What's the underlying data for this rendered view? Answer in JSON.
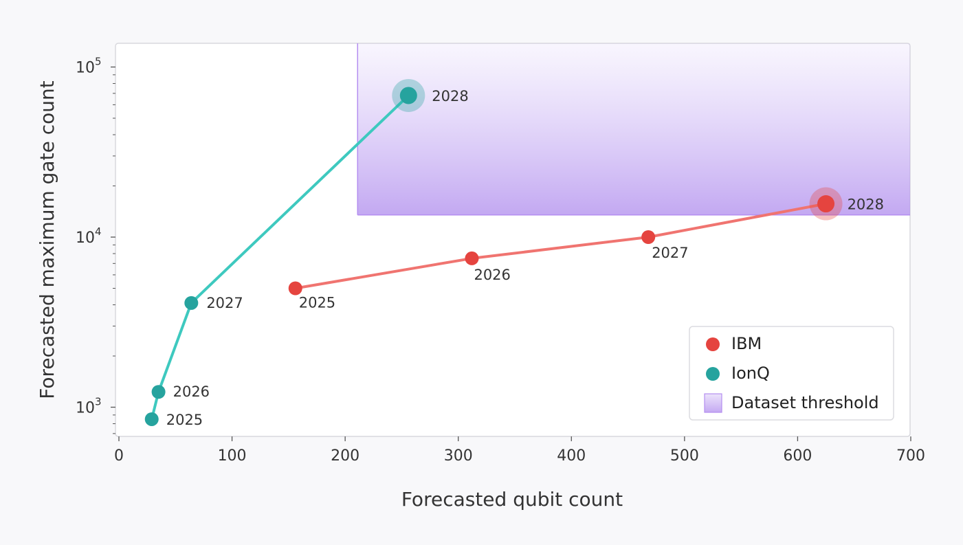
{
  "chart_data": {
    "type": "scatter",
    "title": "",
    "xlabel": "Forecasted qubit count",
    "ylabel": "Forecasted maximum gate count",
    "xlim": [
      0,
      700
    ],
    "ylim": [
      630,
      130000
    ],
    "yscale": "log",
    "x_ticks": [
      0,
      100,
      200,
      300,
      400,
      500,
      600,
      700
    ],
    "y_ticks": [
      {
        "value": 1000,
        "base": "10",
        "exp": "3"
      },
      {
        "value": 10000,
        "base": "10",
        "exp": "4"
      },
      {
        "value": 100000,
        "base": "10",
        "exp": "5"
      }
    ],
    "grid": false,
    "legend_position": "bottom-right",
    "series": [
      {
        "name": "IBM",
        "color": "#e5443f",
        "line_color": "#f07470",
        "points": [
          {
            "x": 156,
            "y": 5000,
            "label": "2025"
          },
          {
            "x": 312,
            "y": 7500,
            "label": "2026"
          },
          {
            "x": 468,
            "y": 10000,
            "label": "2027"
          },
          {
            "x": 625,
            "y": 15700,
            "label": "2028",
            "highlight": true
          }
        ]
      },
      {
        "name": "IonQ",
        "color": "#26a39e",
        "line_color": "#3ec9bf",
        "points": [
          {
            "x": 29,
            "y": 850,
            "label": "2025"
          },
          {
            "x": 35,
            "y": 1230,
            "label": "2026"
          },
          {
            "x": 64,
            "y": 4100,
            "label": "2027"
          },
          {
            "x": 256,
            "y": 68000,
            "label": "2028",
            "highlight": true
          }
        ]
      }
    ],
    "threshold_region": {
      "name": "Dataset threshold",
      "x_min": 211,
      "y_min": 13500,
      "color": "#b79af0"
    }
  }
}
